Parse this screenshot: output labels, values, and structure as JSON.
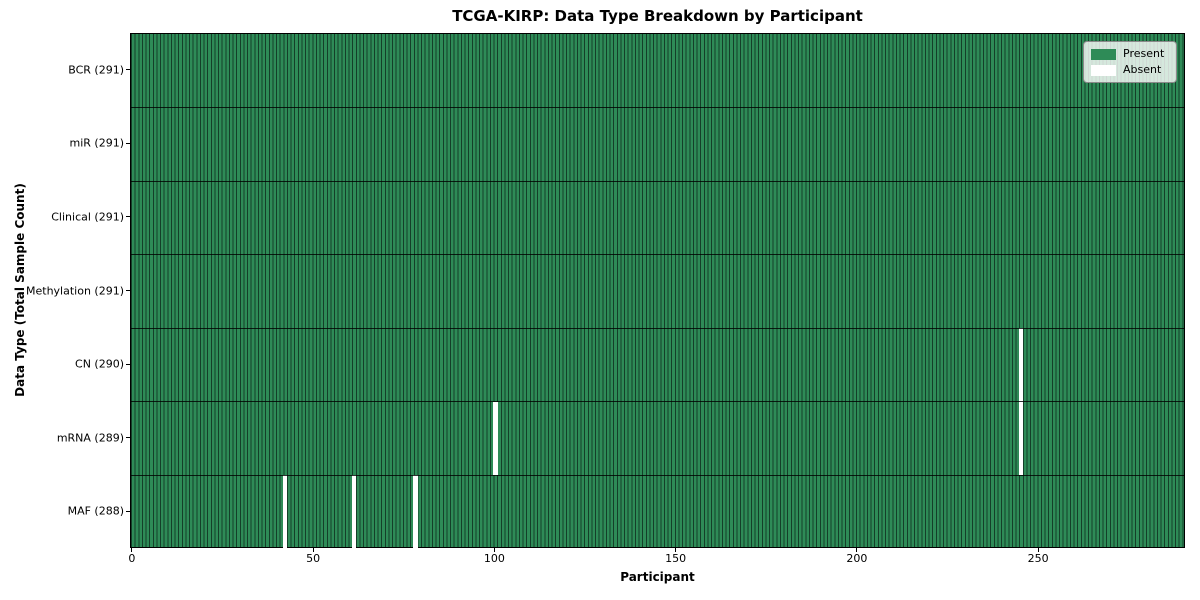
{
  "title": "TCGA-KIRP: Data Type Breakdown by Participant",
  "x_axis": {
    "label": "Participant",
    "tick_labels": [
      "0",
      "50",
      "100",
      "150",
      "200",
      "250"
    ]
  },
  "y_axis": {
    "label": "Data Type (Total Sample Count)"
  },
  "legend": {
    "items": [
      {
        "label": "Present",
        "color": "#2e8b57"
      },
      {
        "label": "Absent",
        "color": "#ffffff"
      }
    ]
  },
  "colors": {
    "present": "#2e8b57",
    "absent": "#ffffff",
    "bar_edge": "#143f29",
    "row_divider": "#000000",
    "legend_background": "#e7eee7",
    "legend_border": "#8a8a8a"
  },
  "chart_data": {
    "type": "heatmap",
    "title": "TCGA-KIRP: Data Type Breakdown by Participant",
    "xlabel": "Participant",
    "ylabel": "Data Type (Total Sample Count)",
    "n_participants": 291,
    "xlim": [
      -0.5,
      290.5
    ],
    "x_tick_values": [
      0,
      50,
      100,
      150,
      200,
      250
    ],
    "grid": false,
    "legend_position": "upper right",
    "present_color": "#2e8b57",
    "absent_color": "#ffffff",
    "rows": [
      {
        "label": "BCR (291)",
        "data_type": "BCR",
        "total_samples": 291,
        "absent_participants": []
      },
      {
        "label": "miR (291)",
        "data_type": "miR",
        "total_samples": 291,
        "absent_participants": []
      },
      {
        "label": "Clinical (291)",
        "data_type": "Clinical",
        "total_samples": 291,
        "absent_participants": []
      },
      {
        "label": "Methylation (291)",
        "data_type": "Methylation",
        "total_samples": 291,
        "absent_participants": []
      },
      {
        "label": "CN (290)",
        "data_type": "CN",
        "total_samples": 290,
        "absent_participants": [
          245
        ]
      },
      {
        "label": "mRNA (289)",
        "data_type": "mRNA",
        "total_samples": 289,
        "absent_participants": [
          100,
          245
        ]
      },
      {
        "label": "MAF (288)",
        "data_type": "MAF",
        "total_samples": 288,
        "absent_participants": [
          42,
          61,
          78
        ]
      }
    ]
  }
}
